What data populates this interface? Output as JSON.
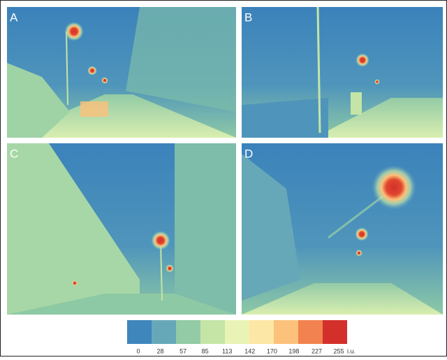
{
  "panels": [
    {
      "label": "A"
    },
    {
      "label": "B"
    },
    {
      "label": "C"
    },
    {
      "label": "D"
    }
  ],
  "colorbar": {
    "ticks": [
      0,
      28,
      57,
      85,
      113,
      142,
      170,
      198,
      227,
      255
    ],
    "unit": "i.u.",
    "colors": [
      "#3f86bd",
      "#66a8b8",
      "#93cba6",
      "#c5e5a7",
      "#eaf3b6",
      "#fde7a6",
      "#fcc17a",
      "#f2824f",
      "#d4302b"
    ]
  }
}
